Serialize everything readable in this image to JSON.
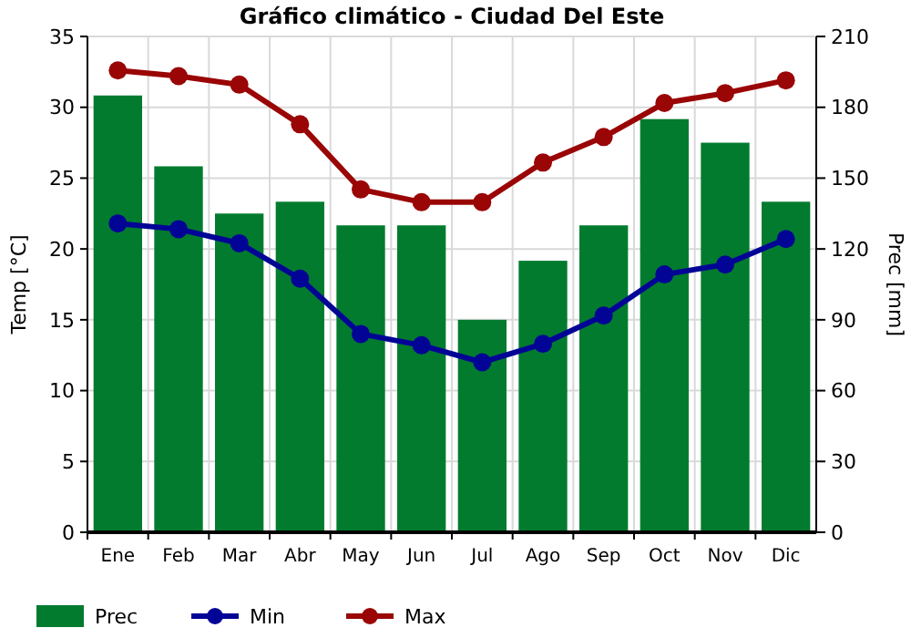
{
  "chart_data": {
    "type": "bar",
    "title": "Gráfico climático - Ciudad Del Este",
    "ylabel": "Temp [°C]",
    "y2label": "Prec [mm]",
    "categories": [
      "Ene",
      "Feb",
      "Mar",
      "Abr",
      "May",
      "Jun",
      "Jul",
      "Ago",
      "Sep",
      "Oct",
      "Nov",
      "Dic"
    ],
    "series": [
      {
        "name": "Prec",
        "type": "bar",
        "axis": "y2",
        "color": "#027b2f",
        "values": [
          185,
          155,
          135,
          140,
          130,
          130,
          90,
          115,
          130,
          175,
          165,
          140
        ]
      },
      {
        "name": "Min",
        "type": "line",
        "axis": "y",
        "color": "#020495",
        "values": [
          21.8,
          21.4,
          20.4,
          17.9,
          14.0,
          13.2,
          12.0,
          13.3,
          15.3,
          18.2,
          18.9,
          20.7
        ]
      },
      {
        "name": "Max",
        "type": "line",
        "axis": "y",
        "color": "#9a0505",
        "values": [
          32.6,
          32.2,
          31.6,
          28.8,
          24.2,
          23.3,
          23.3,
          26.1,
          27.9,
          30.3,
          31.0,
          31.9
        ]
      }
    ],
    "ylim": [
      0,
      35
    ],
    "yticks": [
      0,
      5,
      10,
      15,
      20,
      25,
      30,
      35
    ],
    "y2lim": [
      0,
      210
    ],
    "y2ticks": [
      0,
      30,
      60,
      90,
      120,
      150,
      180,
      210
    ],
    "grid": true,
    "legend": "bottom left",
    "marker": "circle",
    "line_style": "solid"
  }
}
